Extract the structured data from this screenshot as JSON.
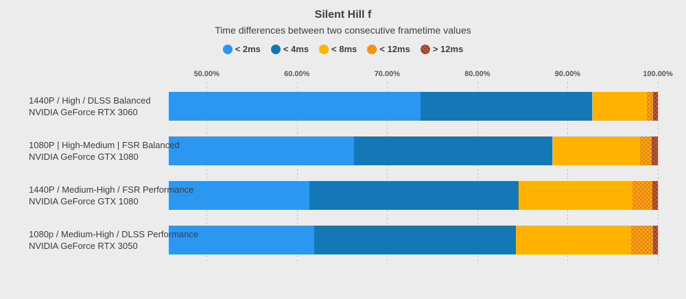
{
  "header": {
    "title": "Silent Hill f",
    "subtitle": "Time differences between two consecutive frametime values"
  },
  "colors": {
    "background": "#ececec",
    "gridline": "#c6c6c6",
    "text": "#3f3f3f",
    "axis_text": "#595959"
  },
  "chart_data": {
    "type": "bar",
    "orientation": "horizontal",
    "stacked": true,
    "title": "Silent Hill f",
    "subtitle": "Time differences between two consecutive frametime values",
    "legend_position": "top",
    "grid": true,
    "x_axis": {
      "min": 45.8,
      "max": 100,
      "unit": "%",
      "ticks": [
        50,
        60,
        70,
        80,
        90,
        100
      ],
      "tick_labels": [
        "50.00%",
        "60.00%",
        "70.00%",
        "80.00%",
        "90.00%",
        "100.00%"
      ]
    },
    "categories": [
      {
        "config": "1440P / High / DLSS Balanced",
        "gpu": "NVIDIA GeForce RTX 3060"
      },
      {
        "config": "1080P | High-Medium | FSR Balanced",
        "gpu": "NVIDIA GeForce GTX 1080"
      },
      {
        "config": "1440P / Medium-High / FSR Performance",
        "gpu": "NVIDIA GeForce GTX 1080"
      },
      {
        "config": "1080p / Medium-High / DLSS Performance",
        "gpu": "NVIDIA GeForce RTX 3050"
      }
    ],
    "series": [
      {
        "name": "< 2ms",
        "pattern": "solid",
        "color": "#2B97F1",
        "values": [
          73.7,
          66.3,
          61.4,
          61.9
        ]
      },
      {
        "name": "< 4ms",
        "pattern": "solid",
        "color": "#1478B6",
        "values": [
          19.0,
          22.0,
          23.2,
          22.4
        ]
      },
      {
        "name": "< 8ms",
        "pattern": "solid",
        "color": "#FFB300",
        "values": [
          6.1,
          9.7,
          12.6,
          12.7
        ]
      },
      {
        "name": "< 12ms",
        "pattern": "dots",
        "color": "#E8821E",
        "dot_color": "#FFB300",
        "values": [
          0.7,
          1.35,
          2.2,
          2.45
        ]
      },
      {
        "name": "> 12ms",
        "pattern": "dots",
        "color": "#D8521D",
        "dot_color": "#5B4B57",
        "values": [
          0.5,
          0.65,
          0.6,
          0.55
        ]
      }
    ]
  }
}
